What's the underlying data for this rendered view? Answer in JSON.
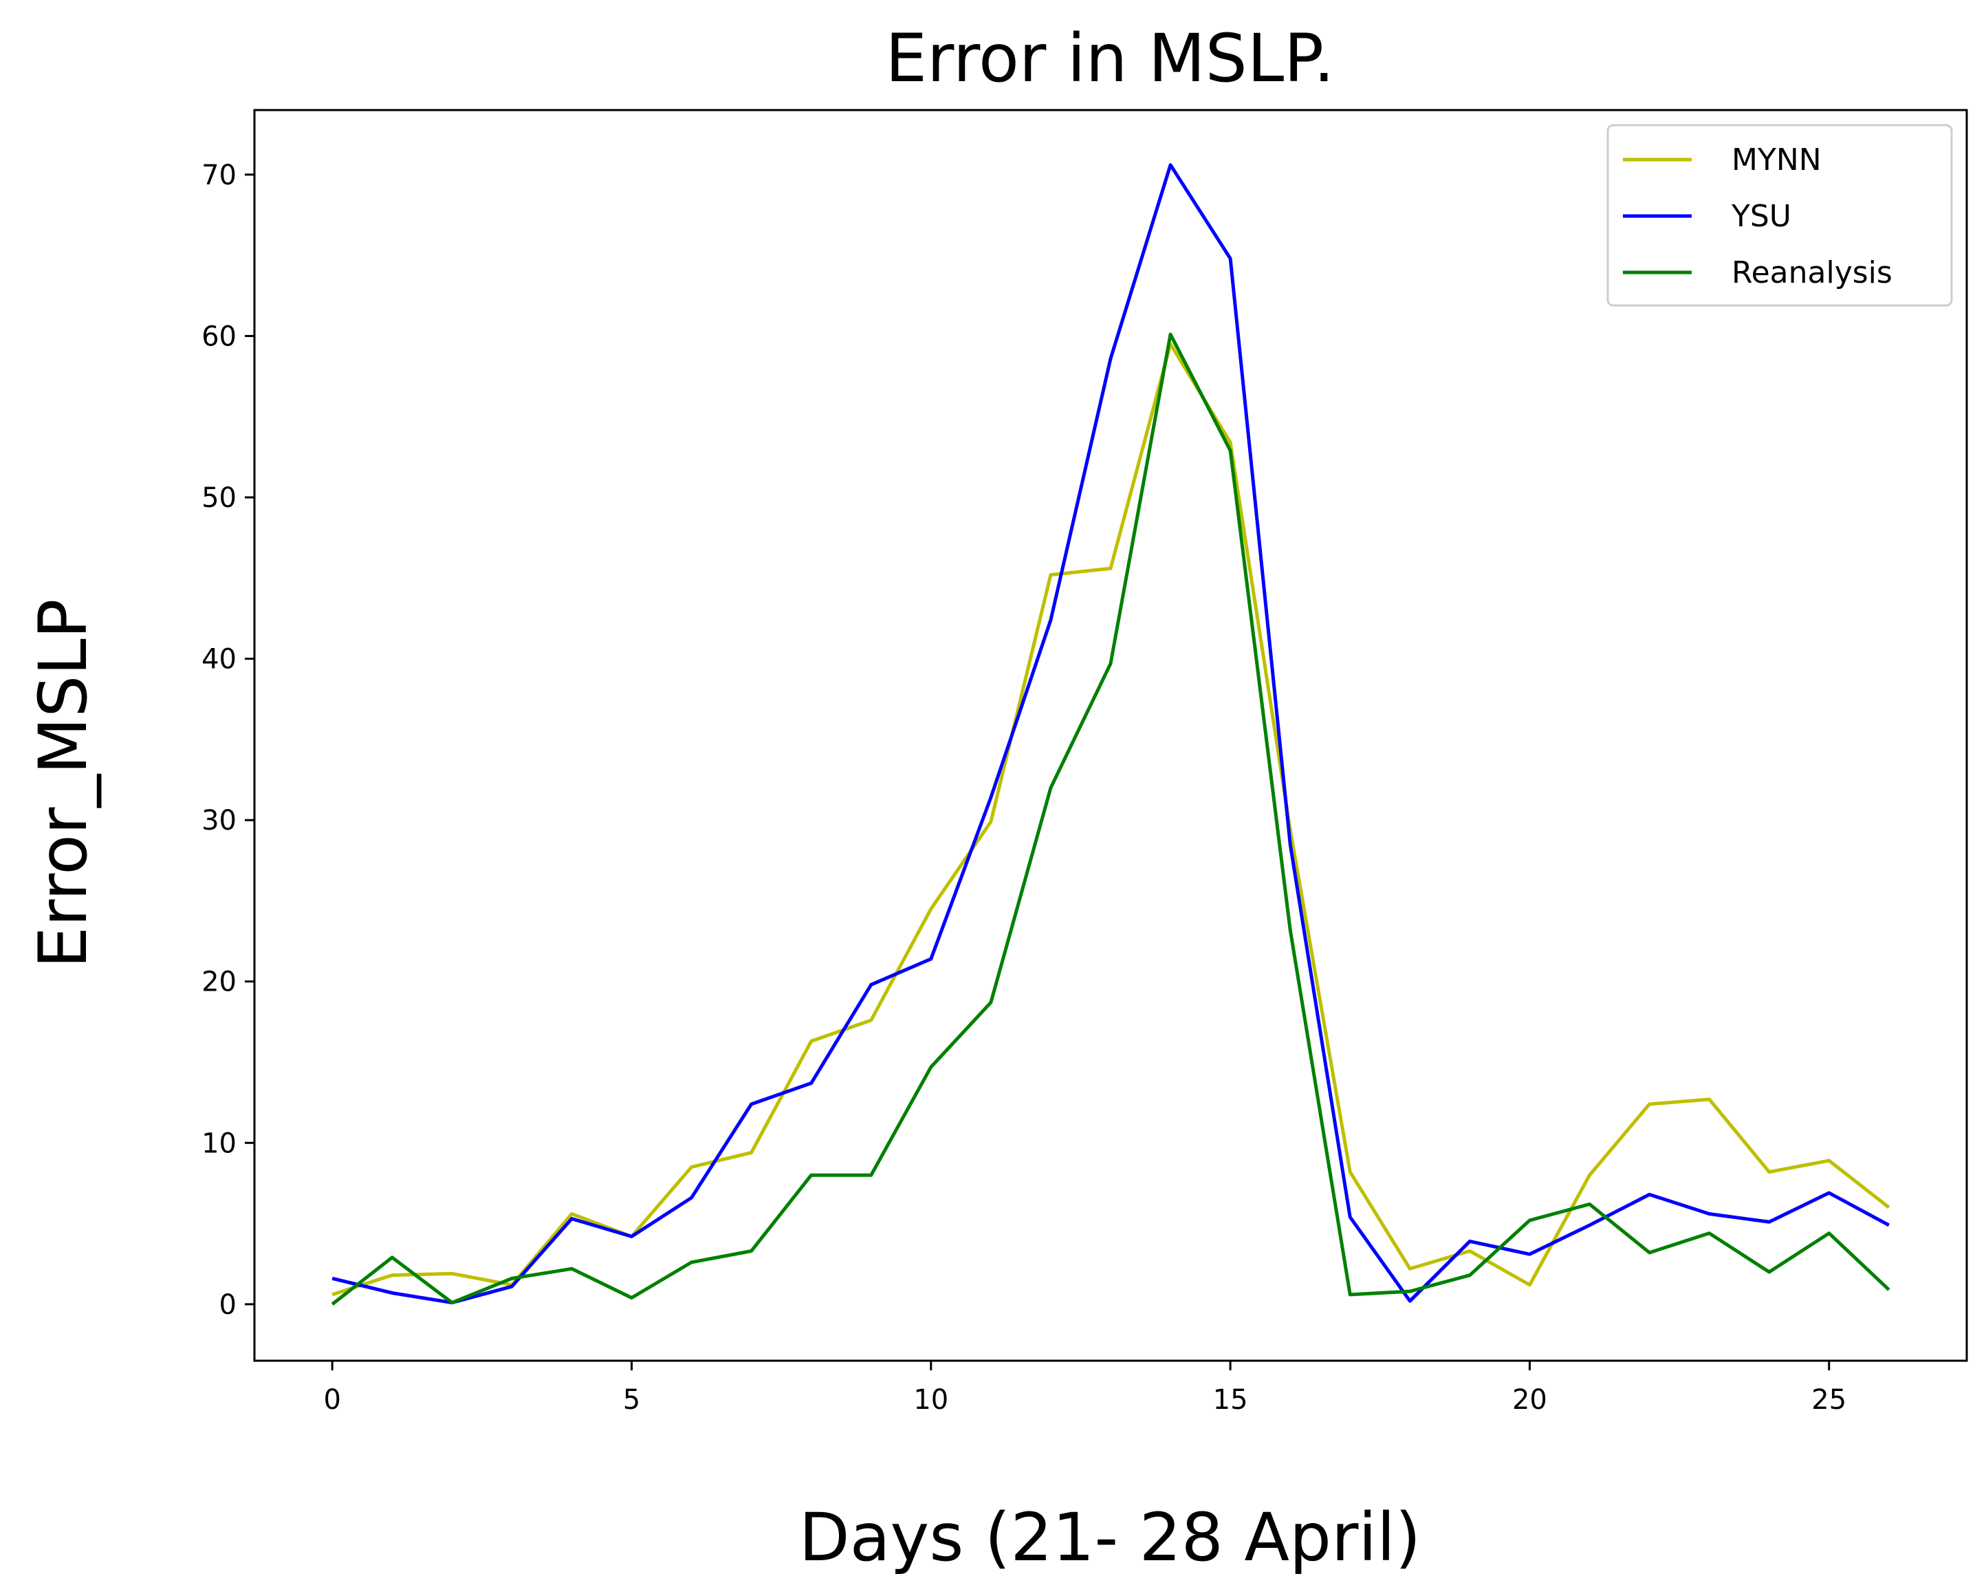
{
  "chart_data": {
    "type": "line",
    "title": "Error in MSLP.",
    "xlabel": "Days (21- 28 April)",
    "ylabel": "Error_MSLP",
    "xlim": [
      -1.3,
      27.3
    ],
    "ylim": [
      -3.5,
      74
    ],
    "xticks": [
      0,
      5,
      10,
      15,
      20,
      25
    ],
    "yticks": [
      0,
      10,
      20,
      30,
      40,
      50,
      60,
      70
    ],
    "grid": false,
    "legend_position": "top-right",
    "x": [
      0,
      1,
      2,
      3,
      4,
      5,
      6,
      7,
      8,
      9,
      10,
      11,
      12,
      13,
      14,
      15,
      16,
      17,
      18,
      19,
      20,
      21,
      22,
      23,
      24,
      25,
      26
    ],
    "series": [
      {
        "name": "MYNN",
        "color": "#bfbf00",
        "values": [
          0.6,
          1.8,
          1.9,
          1.2,
          5.6,
          4.2,
          8.5,
          9.4,
          16.3,
          17.6,
          24.5,
          29.9,
          45.2,
          45.6,
          59.5,
          53.4,
          29.4,
          8.2,
          2.2,
          3.3,
          1.2,
          8.0,
          12.4,
          12.7,
          8.2,
          8.9,
          6.0
        ]
      },
      {
        "name": "YSU",
        "color": "#0000ff",
        "values": [
          1.6,
          0.7,
          0.1,
          1.1,
          5.3,
          4.2,
          6.6,
          12.4,
          13.7,
          19.8,
          21.4,
          31.4,
          42.4,
          58.6,
          70.6,
          64.8,
          28.5,
          5.4,
          0.2,
          3.9,
          3.1,
          4.9,
          6.8,
          5.6,
          5.1,
          6.9,
          4.9
        ]
      },
      {
        "name": "Reanalysis",
        "color": "#008000",
        "values": [
          0.0,
          2.9,
          0.1,
          1.6,
          2.2,
          0.4,
          2.6,
          3.3,
          8.0,
          8.0,
          14.7,
          18.7,
          32.0,
          39.7,
          60.1,
          52.9,
          23.2,
          0.6,
          0.8,
          1.8,
          5.2,
          6.2,
          3.2,
          4.4,
          2.0,
          4.4,
          0.9
        ]
      }
    ]
  }
}
